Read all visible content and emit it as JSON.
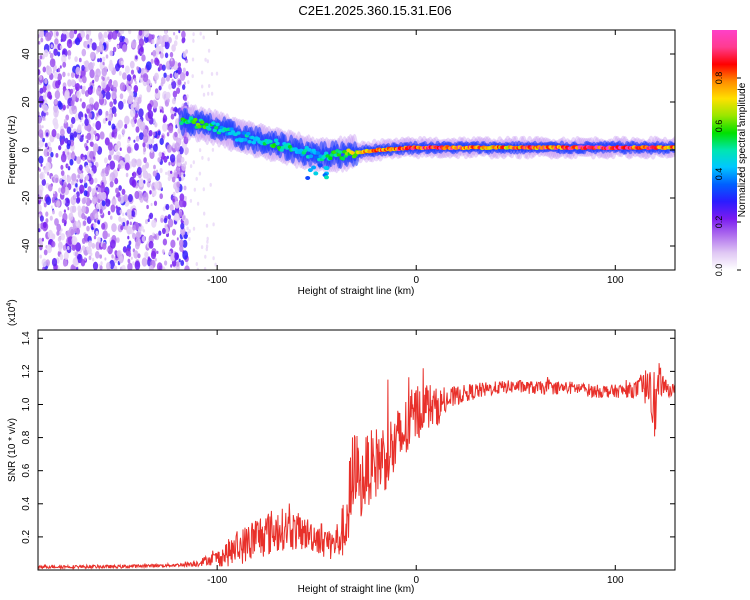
{
  "page_title": "C2E1.2025.360.15.31.E06",
  "colors": {
    "snr_line": "#e8302a",
    "axis": "#000000",
    "colorbar": [
      "#ffffff",
      "#e0c8f4",
      "#b070ee",
      "#7a1cf0",
      "#2a1cff",
      "#0060ff",
      "#00c8ff",
      "#00e6b0",
      "#00e000",
      "#9ae600",
      "#ffe000",
      "#ff8c00",
      "#ff0000",
      "#ff3c90",
      "#ff40c8"
    ]
  },
  "chart_data": [
    {
      "type": "heatmap",
      "title": "C2E1.2025.360.15.31.E06",
      "xlabel": "Height of straight line (km)",
      "ylabel": "Frequency (Hz)",
      "xlim": [
        -190,
        130
      ],
      "ylim": [
        -50,
        50
      ],
      "xticks": [
        -100,
        0,
        100
      ],
      "xtick_labels": [
        "-100",
        "0",
        "100"
      ],
      "yticks": [
        -40,
        -20,
        0,
        20,
        40
      ],
      "ytick_labels": [
        "-40",
        "-20",
        "0",
        "20",
        "40"
      ],
      "colorbar": {
        "label": "Normalized spectral amplitude",
        "range": [
          0,
          1
        ],
        "ticks": [
          0,
          0.2,
          0.4,
          0.6,
          0.8
        ],
        "tick_labels": [
          "0.0",
          "0.2",
          "0.4",
          "0.6",
          "0.8"
        ]
      },
      "description_points": {
        "noise_region_x": [
          -190,
          -115
        ],
        "ridge": {
          "x": [
            -118,
            -110,
            -100,
            -90,
            -80,
            -70,
            -60,
            -50,
            -40,
            -30,
            -20,
            -10,
            0,
            20,
            40,
            60,
            80,
            100,
            120,
            130
          ],
          "freq": [
            12,
            11,
            9,
            6,
            4,
            2,
            0,
            -2,
            -2,
            -1,
            0,
            0.5,
            1,
            1,
            1,
            1,
            1,
            1,
            1,
            1
          ],
          "amplitude": [
            0.55,
            0.6,
            0.5,
            0.45,
            0.5,
            0.55,
            0.5,
            0.45,
            0.6,
            0.7,
            0.8,
            0.85,
            0.9,
            0.9,
            0.8,
            0.85,
            0.9,
            0.95,
            0.85,
            0.8
          ]
        }
      }
    },
    {
      "type": "line",
      "xlabel": "Height of straight line (km)",
      "ylabel": "SNR (10 * v/v)",
      "y_scale_label": "(x10",
      "y_scale_exp": "4",
      "y_scale_close": ")",
      "xlim": [
        -190,
        130
      ],
      "ylim": [
        0,
        1.45
      ],
      "xticks": [
        -100,
        0,
        100
      ],
      "xtick_labels": [
        "-100",
        "0",
        "100"
      ],
      "yticks": [
        0.2,
        0.4,
        0.6,
        0.8,
        1.0,
        1.2,
        1.4
      ],
      "ytick_labels": [
        "0.2",
        "0.4",
        "0.6",
        "0.8",
        "1.0",
        "1.2",
        "1.4"
      ],
      "series": [
        {
          "name": "SNR",
          "x": [
            -190,
            -150,
            -120,
            -110,
            -105,
            -100,
            -95,
            -90,
            -85,
            -80,
            -75,
            -70,
            -65,
            -60,
            -55,
            -50,
            -45,
            -42,
            -38,
            -35,
            -32,
            -30,
            -28,
            -25,
            -20,
            -15,
            -10,
            -5,
            0,
            5,
            10,
            15,
            20,
            25,
            30,
            40,
            50,
            60,
            70,
            80,
            90,
            100,
            110,
            115,
            118,
            120,
            122,
            125,
            130
          ],
          "y": [
            0.02,
            0.02,
            0.03,
            0.04,
            0.06,
            0.07,
            0.1,
            0.13,
            0.16,
            0.2,
            0.22,
            0.24,
            0.25,
            0.23,
            0.22,
            0.2,
            0.18,
            0.15,
            0.2,
            0.3,
            0.5,
            0.65,
            0.5,
            0.6,
            0.65,
            0.7,
            0.75,
            0.85,
            0.95,
            1.0,
            0.98,
            1.02,
            1.05,
            1.07,
            1.08,
            1.1,
            1.11,
            1.1,
            1.1,
            1.1,
            1.08,
            1.08,
            1.09,
            1.1,
            1.2,
            0.95,
            1.15,
            1.1,
            1.08
          ],
          "noise_amplitude": [
            0.01,
            0.01,
            0.01,
            0.02,
            0.03,
            0.05,
            0.08,
            0.1,
            0.12,
            0.14,
            0.14,
            0.14,
            0.12,
            0.12,
            0.1,
            0.1,
            0.1,
            0.1,
            0.14,
            0.2,
            0.35,
            0.2,
            0.2,
            0.22,
            0.22,
            0.22,
            0.22,
            0.2,
            0.18,
            0.15,
            0.12,
            0.08,
            0.06,
            0.05,
            0.05,
            0.04,
            0.04,
            0.04,
            0.04,
            0.04,
            0.04,
            0.04,
            0.05,
            0.1,
            0.25,
            0.2,
            0.1,
            0.05,
            0.04
          ]
        }
      ]
    }
  ]
}
